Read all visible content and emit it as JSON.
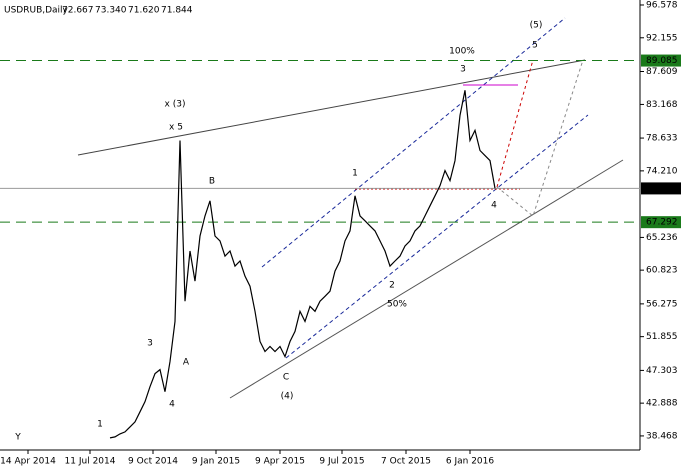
{
  "chart_data": {
    "type": "line",
    "title": "USDRUB,Daily",
    "ohlc": [
      72.667,
      {
        "value": 73.34,
        "label": "73.340"
      },
      {
        "value": 71.62,
        "label": "71.620"
      },
      71.844
    ],
    "series": [
      {
        "color": "#000000",
        "values": [
          38.2,
          38.33,
          38.74,
          39.01,
          39.69,
          40.36,
          41.72,
          43.08,
          45.11,
          46.87,
          47.41,
          44.43,
          48.49,
          53.91,
          78.3,
          56.63,
          63.4,
          59.34,
          65.43,
          68.14,
          70.17,
          65.43,
          64.76,
          62.72,
          63.4,
          61.37,
          62.05,
          60.01,
          58.66,
          55.27,
          51.2,
          49.85,
          50.53,
          49.85,
          50.53,
          49.17,
          51.2,
          52.56,
          55.27,
          53.91,
          55.95,
          55.27,
          56.63,
          57.3,
          57.98,
          60.69,
          62.05,
          64.76,
          66.11,
          70.85,
          68.14,
          67.47,
          66.79,
          66.11,
          64.76,
          63.4,
          61.37,
          62.05,
          62.72,
          64.08,
          64.76,
          66.11,
          66.79,
          68.14,
          69.5,
          70.85,
          72.21,
          74.24,
          72.89,
          75.6,
          81.69,
          85.08,
          78.3,
          79.66,
          76.95,
          76.27,
          75.6,
          71.844
        ]
      }
    ],
    "xlim": [
      -22,
      106
    ],
    "xticks": [
      {
        "value": -16.4,
        "label": "14 Apr 2014"
      },
      {
        "value": -4,
        "label": "11 Jul 2014"
      },
      {
        "value": 8.6,
        "label": "9 Oct 2014"
      },
      {
        "value": 21.2,
        "label": "9 Jan 2015"
      },
      {
        "value": 34,
        "label": "9 Apr 2015"
      },
      {
        "value": 46.4,
        "label": "9 Jul 2015"
      },
      {
        "value": 59.2,
        "label": "7 Oct 2015"
      },
      {
        "value": 72,
        "label": "6 Jan 2016"
      }
    ],
    "ylim": [
      36.57,
      97.25
    ],
    "yticks": [
      96.578,
      92.155,
      87.609,
      83.168,
      78.633,
      {
        "value": 74.21,
        "label": "74.210"
      },
      65.236,
      60.823,
      56.275,
      51.855,
      47.303,
      42.888,
      38.468
    ],
    "levels": [
      {
        "value": 89.085,
        "color": "#1a7a1a",
        "dashed": true
      },
      {
        "value": 71.844,
        "color": "#000000",
        "dashed": false
      },
      {
        "value": 67.292,
        "color": "#1a7a1a",
        "dashed": true
      }
    ],
    "annotations": [
      "Y",
      "1",
      "4",
      "3",
      "A",
      "x 5",
      "x (3)",
      "B",
      "C",
      "(4)",
      "1",
      "2",
      "50%",
      "3",
      "100%",
      "(5)",
      "5",
      "4"
    ]
  }
}
